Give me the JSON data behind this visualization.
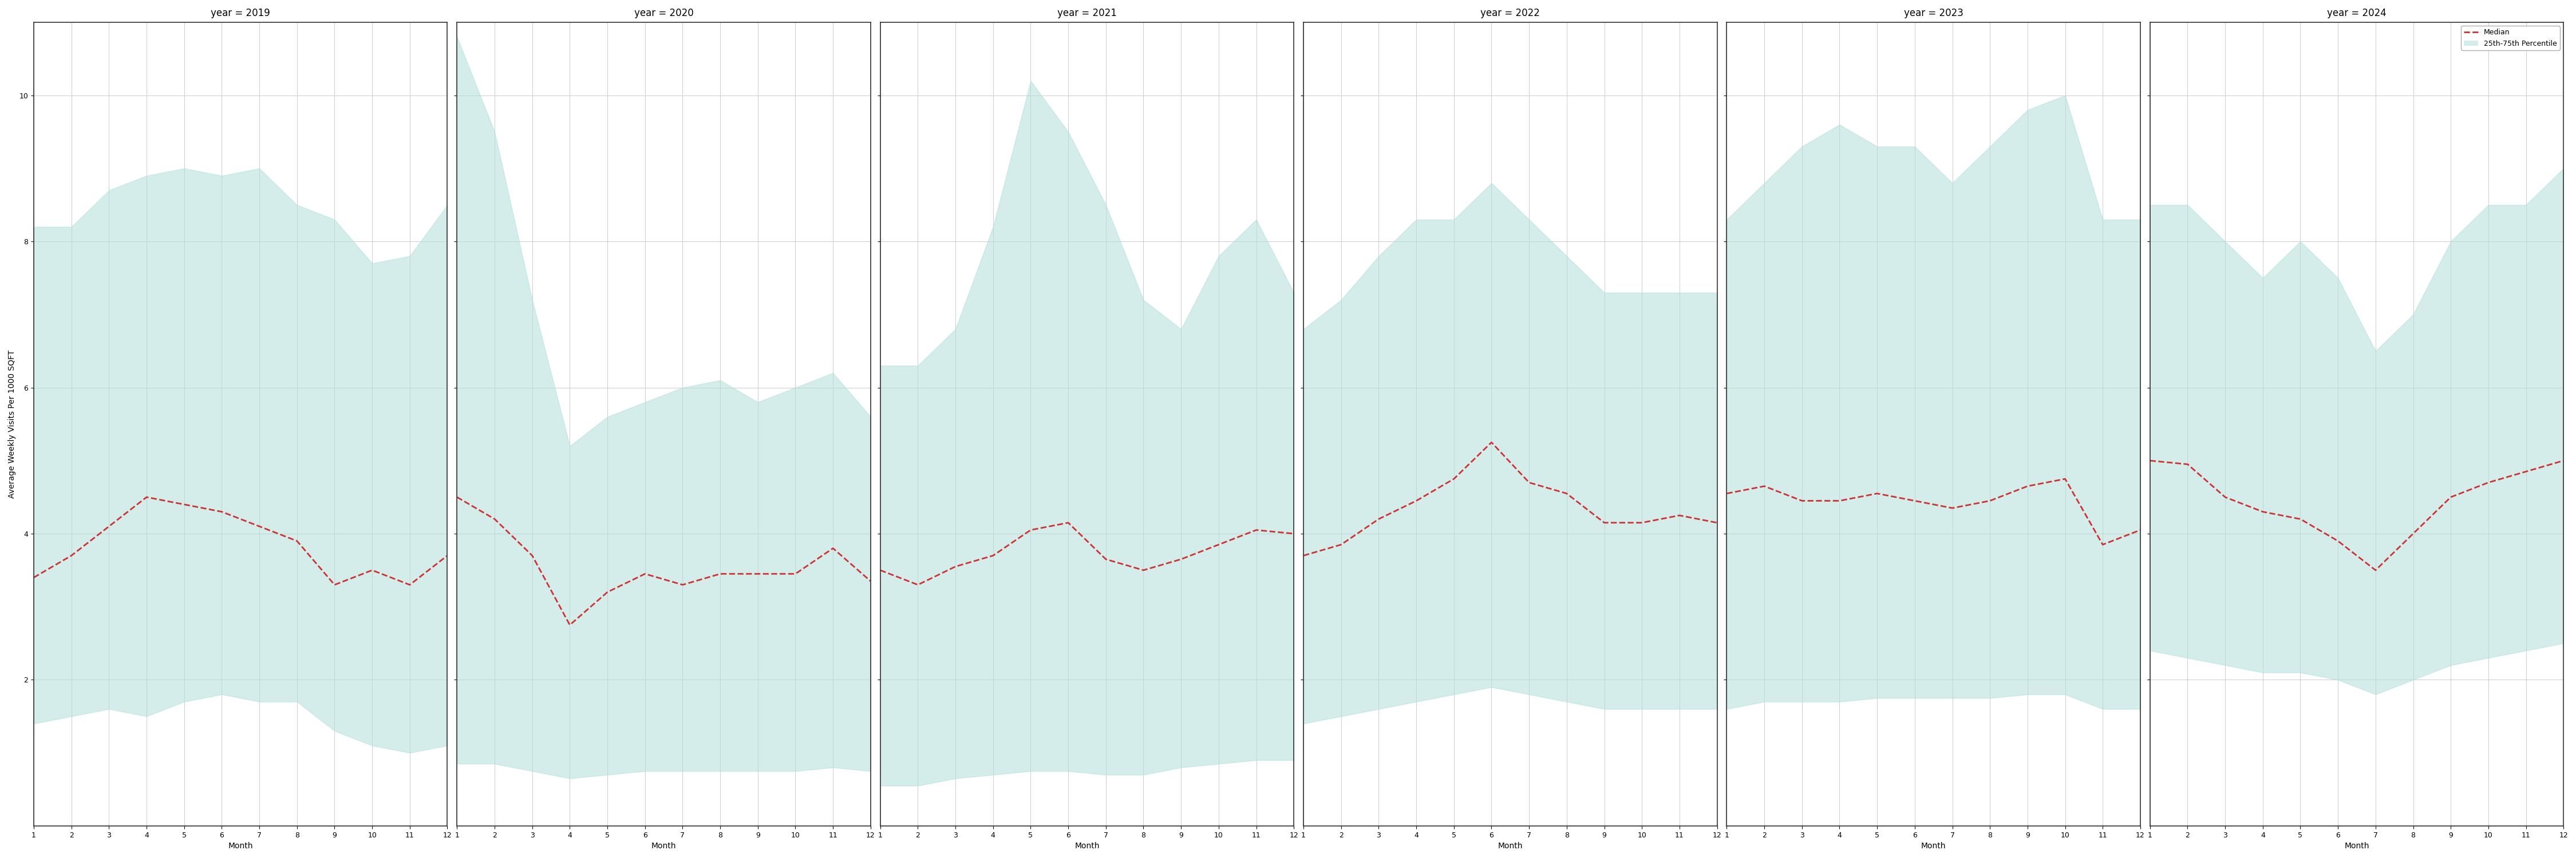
{
  "years": [
    2019,
    2020,
    2021,
    2022,
    2023,
    2024
  ],
  "months": [
    1,
    2,
    3,
    4,
    5,
    6,
    7,
    8,
    9,
    10,
    11,
    12
  ],
  "median": {
    "2019": [
      3.4,
      3.7,
      4.1,
      4.5,
      4.4,
      4.3,
      4.1,
      3.9,
      3.3,
      3.5,
      3.3,
      3.7
    ],
    "2020": [
      4.5,
      4.2,
      3.7,
      2.75,
      3.2,
      3.45,
      3.3,
      3.45,
      3.45,
      3.45,
      3.8,
      3.35
    ],
    "2021": [
      3.5,
      3.3,
      3.55,
      3.7,
      4.05,
      4.15,
      3.65,
      3.5,
      3.65,
      3.85,
      4.05,
      4.0
    ],
    "2022": [
      3.7,
      3.85,
      4.2,
      4.45,
      4.75,
      5.25,
      4.7,
      4.55,
      4.15,
      4.15,
      4.25,
      4.15
    ],
    "2023": [
      4.55,
      4.65,
      4.45,
      4.45,
      4.55,
      4.45,
      4.35,
      4.45,
      4.65,
      4.75,
      3.85,
      4.05
    ],
    "2024": [
      5.0,
      4.95,
      4.5,
      4.3,
      4.2,
      3.9,
      3.5,
      4.0,
      4.5,
      4.7,
      4.85,
      5.0
    ]
  },
  "q25": {
    "2019": [
      1.4,
      1.5,
      1.6,
      1.5,
      1.7,
      1.8,
      1.7,
      1.7,
      1.3,
      1.1,
      1.0,
      1.1
    ],
    "2020": [
      0.85,
      0.85,
      0.75,
      0.65,
      0.7,
      0.75,
      0.75,
      0.75,
      0.75,
      0.75,
      0.8,
      0.75
    ],
    "2021": [
      0.55,
      0.55,
      0.65,
      0.7,
      0.75,
      0.75,
      0.7,
      0.7,
      0.8,
      0.85,
      0.9,
      0.9
    ],
    "2022": [
      1.4,
      1.5,
      1.6,
      1.7,
      1.8,
      1.9,
      1.8,
      1.7,
      1.6,
      1.6,
      1.6,
      1.6
    ],
    "2023": [
      1.6,
      1.7,
      1.7,
      1.7,
      1.75,
      1.75,
      1.75,
      1.75,
      1.8,
      1.8,
      1.6,
      1.6
    ],
    "2024": [
      2.4,
      2.3,
      2.2,
      2.1,
      2.1,
      2.0,
      1.8,
      2.0,
      2.2,
      2.3,
      2.4,
      2.5
    ]
  },
  "q75": {
    "2019": [
      8.2,
      8.2,
      8.7,
      8.9,
      9.0,
      8.9,
      9.0,
      8.5,
      8.3,
      7.7,
      7.8,
      8.5
    ],
    "2020": [
      10.8,
      9.5,
      7.2,
      5.2,
      5.6,
      5.8,
      6.0,
      6.1,
      5.8,
      6.0,
      6.2,
      5.6
    ],
    "2021": [
      6.3,
      6.3,
      6.8,
      8.2,
      10.2,
      9.5,
      8.5,
      7.2,
      6.8,
      7.8,
      8.3,
      7.3
    ],
    "2022": [
      6.8,
      7.2,
      7.8,
      8.3,
      8.3,
      8.8,
      8.3,
      7.8,
      7.3,
      7.3,
      7.3,
      7.3
    ],
    "2023": [
      8.3,
      8.8,
      9.3,
      9.6,
      9.3,
      9.3,
      8.8,
      9.3,
      9.8,
      10.0,
      8.3,
      8.3
    ],
    "2024": [
      8.5,
      8.5,
      8.0,
      7.5,
      8.0,
      7.5,
      6.5,
      7.0,
      8.0,
      8.5,
      8.5,
      9.0
    ]
  },
  "fill_color": "#b2dfdb",
  "fill_alpha": 0.55,
  "line_color": "#cc3333",
  "line_style": "--",
  "line_width": 2.0,
  "grid_color": "#cccccc",
  "background_color": "#ffffff",
  "ylabel": "Average Weekly Visits Per 1000 SQFT",
  "xlabel": "Month",
  "ylim": [
    0,
    11
  ],
  "yticks": [
    2,
    4,
    6,
    8,
    10
  ],
  "title_fontsize": 12,
  "label_fontsize": 10,
  "tick_fontsize": 9
}
